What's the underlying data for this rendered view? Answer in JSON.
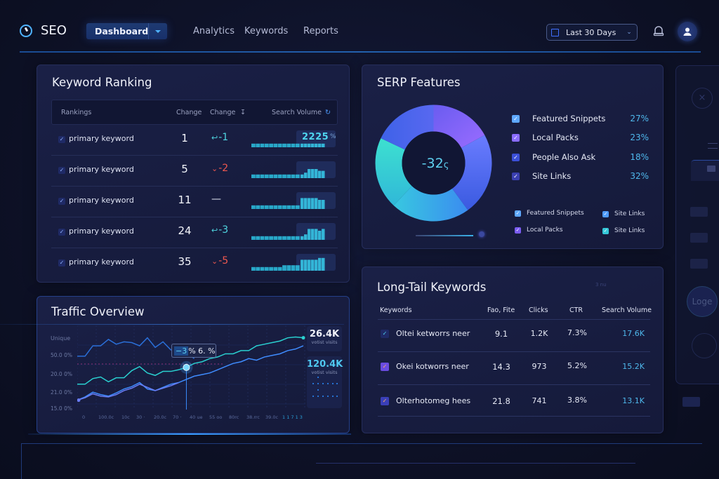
{
  "header": {
    "app_name": "SEO",
    "dashboard_label": "Dashboard",
    "nav": [
      "Analytics",
      "Keywords",
      "Reports"
    ],
    "date_range": "Last 30 Days"
  },
  "keyword_ranking": {
    "title": "Keyword Ranking",
    "columns": [
      "Rankings",
      "Change",
      "Change",
      "Search Volume"
    ],
    "rows": [
      {
        "keyword": "primary keyword",
        "rank": "1",
        "change": "-1",
        "change_type": "up",
        "volume": "2225",
        "volume_unit": "%",
        "bars": [
          2,
          2,
          2,
          2,
          2,
          2,
          2,
          2,
          2,
          2,
          2,
          2,
          2,
          2,
          2,
          2,
          2,
          2
        ]
      },
      {
        "keyword": "primary keyword",
        "rank": "5",
        "change": "-2",
        "change_type": "down",
        "bars": [
          2,
          2,
          2,
          2,
          2,
          2,
          2,
          2,
          2,
          2,
          2,
          2,
          3,
          5,
          5,
          5,
          4,
          4
        ]
      },
      {
        "keyword": "primary keyword",
        "rank": "11",
        "change": "—",
        "change_type": "flat",
        "bars": [
          2,
          2,
          2,
          2,
          2,
          2,
          2,
          2,
          2,
          2,
          2,
          6,
          6,
          6,
          6,
          6,
          5,
          5
        ]
      },
      {
        "keyword": "primary keyword",
        "rank": "24",
        "change": "-3",
        "change_type": "up",
        "bars": [
          2,
          2,
          2,
          2,
          2,
          2,
          2,
          2,
          2,
          2,
          2,
          2,
          3,
          6,
          6,
          6,
          5,
          6
        ]
      },
      {
        "keyword": "primary keyword",
        "rank": "35",
        "change": "-5",
        "change_type": "down",
        "bars": [
          2,
          2,
          2,
          2,
          2,
          2,
          2,
          3,
          3,
          3,
          3,
          6,
          6,
          6,
          6,
          6,
          7,
          7
        ]
      }
    ]
  },
  "serp": {
    "title": "SERP Features",
    "center_value": "-32",
    "center_suffix": "ς",
    "items": [
      {
        "label": "Featured Snippets",
        "value": 27,
        "pct": "27%",
        "color": "#5ea8ff"
      },
      {
        "label": "Local Packs",
        "value": 23,
        "pct": "23%",
        "color": "#8a6cff"
      },
      {
        "label": "People Also Ask",
        "value": 18,
        "pct": "18%",
        "color": "#3b4fd8"
      },
      {
        "label": "Site Links",
        "value": 32,
        "pct": "32%",
        "color": "#3a3fb0"
      }
    ],
    "mini_legend": [
      {
        "label": "Featured Snippets",
        "color": "#5ea8ff"
      },
      {
        "label": "Site Links",
        "color": "#4f9cff"
      },
      {
        "label": "Local Packs",
        "color": "#7a5cf0"
      },
      {
        "label": "Site Links",
        "color": "#35c8d8"
      }
    ]
  },
  "long_tail": {
    "title": "Long-Tail Keywords",
    "faint_label": "3 nu",
    "columns": [
      "Keywords",
      "Fao, Fite",
      "Clicks",
      "CTR",
      "Search Volume"
    ],
    "rows": [
      {
        "keyword": "Oltei ketworrs neer",
        "pos": "9.1",
        "clicks": "1.2K",
        "ctr": "7.3%",
        "volume": "17.6K",
        "cb_color": "#1f2a66",
        "check_color": "#4fd6f0"
      },
      {
        "keyword": "Okei kotworrs neer",
        "pos": "14.3",
        "clicks": "973",
        "ctr": "5.2%",
        "volume": "15.2K",
        "cb_color": "#6a4ce0",
        "check_color": "#ffb060"
      },
      {
        "keyword": "Olterhotomeg hees",
        "pos": "21.8",
        "clicks": "741",
        "ctr": "3.8%",
        "volume": "13.1K",
        "cb_color": "#3a3fb8",
        "check_color": "#ffb060"
      }
    ]
  },
  "traffic": {
    "title": "Traffic Overview",
    "tooltip_highlight": "−3",
    "tooltip_rest": "% 6. %",
    "stat1_value": "26.4K",
    "stat1_label": "votist visits",
    "stat2_value": "120.4K",
    "stat2_label": "votist visits"
  },
  "chart_data": {
    "type": "line",
    "title": "Traffic Overview",
    "ylabel": "Unique",
    "y_ticks": [
      "50.0 0%",
      "20.0 0%",
      "21.0 0%",
      "15.0 0%"
    ],
    "x_ticks": [
      "0",
      "100.0c",
      "10c",
      "30 ·",
      "20.0c",
      "70 ·",
      "40 ue",
      "55 oo",
      "80rc",
      "38.rrc",
      "39.0c",
      "1 1 7 1 3"
    ],
    "ylim": [
      0,
      100
    ],
    "series": [
      {
        "name": "series-top",
        "color": "#2a6fd8",
        "values": [
          65,
          65,
          78,
          78,
          86,
          80,
          83,
          82,
          78,
          88,
          76,
          83,
          73,
          70,
          70,
          62,
          null,
          null,
          null,
          null,
          null,
          null,
          null
        ]
      },
      {
        "name": "series-teal",
        "color": "#2ad0d0",
        "values": [
          30,
          30,
          37,
          39,
          33,
          38,
          38,
          47,
          52,
          44,
          41,
          46,
          46,
          48,
          51,
          56,
          58,
          62,
          64,
          68,
          68,
          72,
          72,
          78,
          80,
          82,
          84,
          88,
          89,
          88
        ]
      },
      {
        "name": "series-blue",
        "color": "#3f8cff",
        "values": [
          10,
          14,
          20,
          17,
          15,
          19,
          24,
          27,
          32,
          24,
          22,
          26,
          30,
          32,
          36,
          40,
          42,
          44,
          48,
          52,
          56,
          58,
          62,
          60,
          64,
          66,
          68,
          72,
          74,
          78
        ]
      },
      {
        "name": "series-violet",
        "color": "#6a7cf5",
        "values": [
          10,
          13,
          18,
          15,
          14,
          17,
          22,
          25,
          30,
          26,
          22,
          25,
          28,
          32
        ]
      }
    ],
    "highlight_point": {
      "series": "series-teal",
      "index": 14
    }
  }
}
